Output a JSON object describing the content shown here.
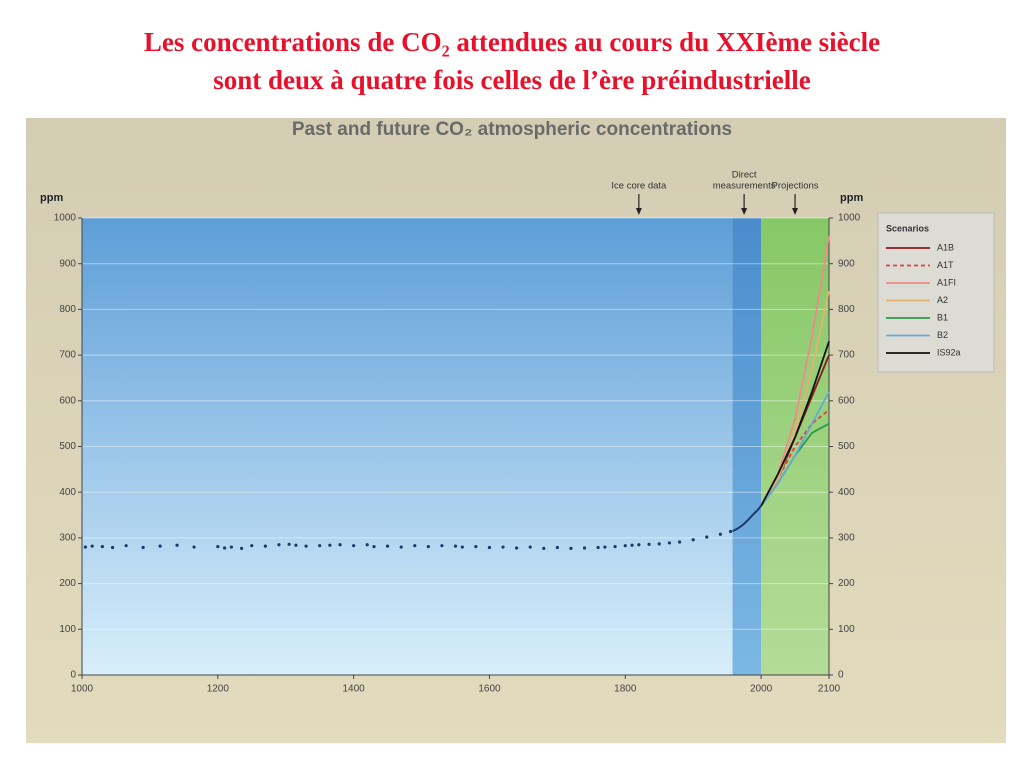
{
  "title_lines": [
    "Les concentrations de CO₂ attendues au cours du XXIème siècle",
    "sont deux à quatre fois celles de l’ère préindustrielle"
  ],
  "chart_data": {
    "type": "line",
    "title": "Past and future CO₂ atmospheric concentrations",
    "y_label": "ppm",
    "y2_label": "ppm",
    "xlim": [
      1000,
      2100
    ],
    "xticks": [
      1000,
      1200,
      1400,
      1600,
      1800,
      2000,
      2100
    ],
    "ylim": [
      0,
      1000
    ],
    "yticks": [
      0,
      100,
      200,
      300,
      400,
      500,
      600,
      700,
      800,
      900,
      1000
    ],
    "y2lim": [
      0,
      1000
    ],
    "y2ticks": [
      0,
      100,
      200,
      300,
      400,
      500,
      600,
      700,
      800,
      900,
      1000
    ],
    "grid": true,
    "regions": [
      {
        "x": [
          1000,
          1958
        ],
        "color_top": "#5d9ed8",
        "color_bottom": "#d8eefa"
      },
      {
        "x": [
          1958,
          2000
        ],
        "color_top": "#4a8ccc",
        "color_bottom": "#7cb8e4"
      },
      {
        "x": [
          2000,
          2100
        ],
        "color_top": "#86c866",
        "color_bottom": "#b4dc98"
      }
    ],
    "annotations": [
      {
        "lines": [
          "Ice core data"
        ],
        "x": 1820
      },
      {
        "lines": [
          "Direct",
          "measurements"
        ],
        "x": 1975
      },
      {
        "lines": [
          "Projections"
        ],
        "x": 2050
      }
    ],
    "ice_core": {
      "color": "#1a3a6a",
      "x": [
        1005,
        1015,
        1030,
        1045,
        1065,
        1090,
        1115,
        1140,
        1165,
        1200,
        1210,
        1220,
        1235,
        1250,
        1270,
        1290,
        1305,
        1315,
        1330,
        1350,
        1365,
        1380,
        1400,
        1420,
        1430,
        1450,
        1470,
        1490,
        1510,
        1530,
        1550,
        1560,
        1580,
        1600,
        1620,
        1640,
        1660,
        1680,
        1700,
        1720,
        1740,
        1760,
        1770,
        1785,
        1800,
        1810,
        1820,
        1835,
        1850,
        1865,
        1880,
        1900,
        1920,
        1940,
        1955
      ],
      "values": [
        280,
        282,
        281,
        279,
        283,
        279,
        282,
        284,
        280,
        281,
        278,
        280,
        277,
        283,
        282,
        285,
        286,
        284,
        282,
        283,
        284,
        285,
        283,
        285,
        281,
        282,
        280,
        283,
        281,
        283,
        282,
        280,
        281,
        279,
        280,
        278,
        280,
        277,
        279,
        277,
        278,
        279,
        280,
        281,
        283,
        284,
        285,
        286,
        287,
        289,
        291,
        296,
        302,
        308,
        314
      ]
    },
    "measurements": {
      "color": "#1a3a6a",
      "x": [
        1958,
        1965,
        1970,
        1975,
        1980,
        1985,
        1990,
        1995,
        2000
      ],
      "values": [
        315,
        320,
        325,
        331,
        338,
        346,
        354,
        361,
        370
      ]
    },
    "series": [
      {
        "name": "A1B",
        "color": "#8b1a1a",
        "dash": false,
        "x": [
          2000,
          2025,
          2050,
          2075,
          2100
        ],
        "values": [
          370,
          430,
          520,
          610,
          700
        ]
      },
      {
        "name": "A1T",
        "color": "#e04040",
        "dash": true,
        "x": [
          2000,
          2025,
          2050,
          2075,
          2100
        ],
        "values": [
          370,
          430,
          500,
          550,
          580
        ]
      },
      {
        "name": "A1FI",
        "color": "#f08a8a",
        "dash": false,
        "x": [
          2000,
          2025,
          2050,
          2075,
          2100
        ],
        "values": [
          370,
          440,
          560,
          740,
          960
        ]
      },
      {
        "name": "A2",
        "color": "#e8b070",
        "dash": false,
        "x": [
          2000,
          2025,
          2050,
          2075,
          2100
        ],
        "values": [
          370,
          430,
          530,
          670,
          840
        ]
      },
      {
        "name": "B1",
        "color": "#2a9a4a",
        "dash": false,
        "x": [
          2000,
          2025,
          2050,
          2075,
          2100
        ],
        "values": [
          370,
          420,
          480,
          530,
          550
        ]
      },
      {
        "name": "B2",
        "color": "#6aa8d8",
        "dash": false,
        "x": [
          2000,
          2025,
          2050,
          2075,
          2100
        ],
        "values": [
          370,
          420,
          480,
          550,
          620
        ]
      },
      {
        "name": "IS92a",
        "color": "#111111",
        "dash": false,
        "x": [
          2000,
          2025,
          2050,
          2075,
          2100
        ],
        "values": [
          370,
          440,
          520,
          620,
          730
        ]
      }
    ],
    "legend_title": "Scenarios",
    "legend": "right"
  }
}
